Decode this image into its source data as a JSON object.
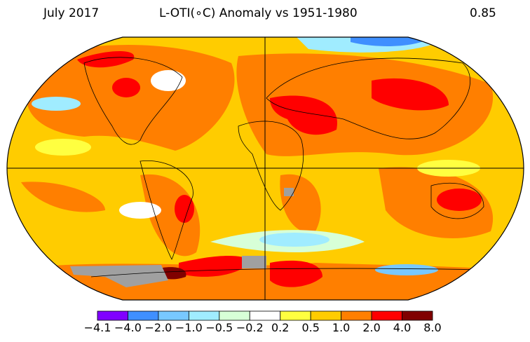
{
  "header": {
    "date": "July 2017",
    "title": "L-OTI(∘C) Anomaly vs 1951-1980",
    "global_mean": "0.85"
  },
  "colorbar": {
    "bins": [
      {
        "color": "#8000ff"
      },
      {
        "color": "#3f8fff"
      },
      {
        "color": "#78c8ff"
      },
      {
        "color": "#a0ecff"
      },
      {
        "color": "#d7ffd7"
      },
      {
        "color": "#ffffff"
      },
      {
        "color": "#ffff40"
      },
      {
        "color": "#ffcc00"
      },
      {
        "color": "#ff7f00"
      },
      {
        "color": "#ff0000"
      },
      {
        "color": "#800000"
      }
    ],
    "labels": [
      "−4.1",
      "−4.0",
      "−2.0",
      "−1.0",
      "−0.5",
      "−0.2",
      "0.2",
      "0.5",
      "1.0",
      "2.0",
      "4.0",
      "8.0"
    ]
  },
  "map": {
    "projection": "Robinson",
    "missing_data_color": "#a0a0a0"
  }
}
